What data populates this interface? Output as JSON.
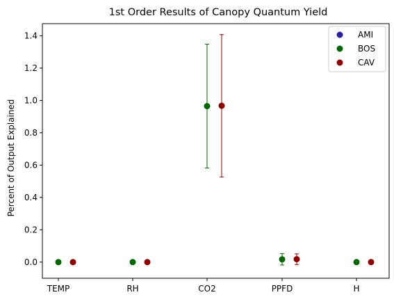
{
  "chart_data": {
    "type": "scatter",
    "title": "1st Order Results of Canopy Quantum Yield",
    "xlabel": "",
    "ylabel": "Percent of Output Explained",
    "categories": [
      "TEMP",
      "RH",
      "CO2",
      "PPFD",
      "H"
    ],
    "ylim": [
      -0.1,
      1.475
    ],
    "yticks": [
      "0.0",
      "0.2",
      "0.4",
      "0.6",
      "0.8",
      "1.0",
      "1.2",
      "1.4"
    ],
    "grid": false,
    "legend_position": "top-right",
    "series": [
      {
        "name": "AMI",
        "color": "#2a1fa0",
        "values": [],
        "errors": []
      },
      {
        "name": "BOS",
        "color": "#006400",
        "values": [
          0.0,
          0.0,
          0.965,
          0.017,
          0.0
        ],
        "errors": [
          null,
          null,
          0.383,
          0.035,
          null
        ]
      },
      {
        "name": "CAV",
        "color": "#8b0000",
        "values": [
          0.0,
          0.0,
          0.967,
          0.018,
          0.0
        ],
        "errors": [
          null,
          null,
          0.44,
          0.033,
          null
        ]
      }
    ]
  }
}
